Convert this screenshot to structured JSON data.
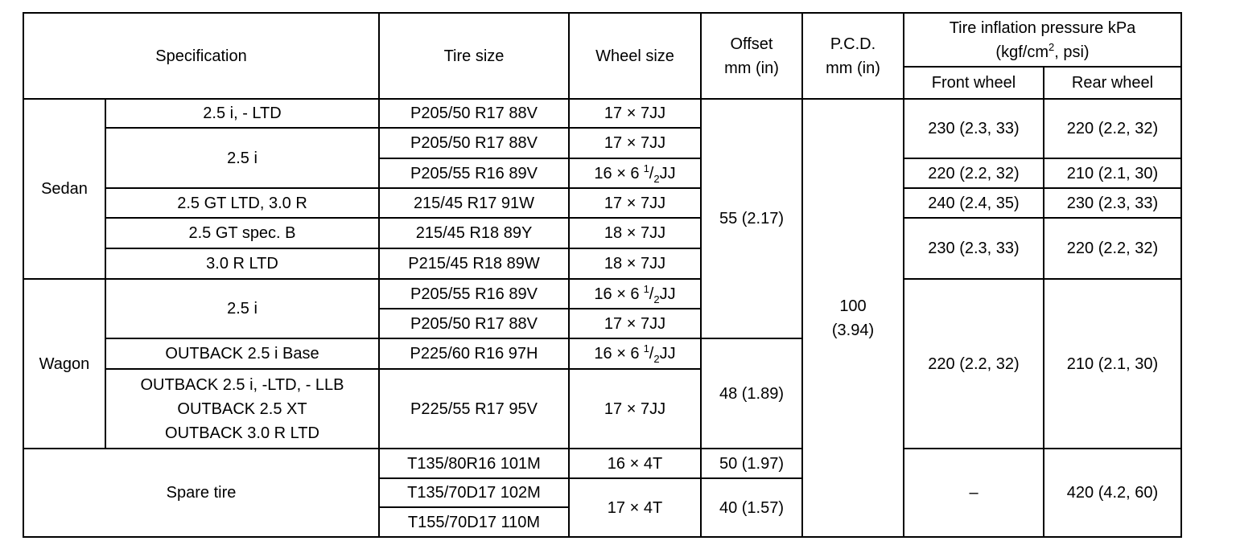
{
  "table": {
    "header": {
      "specification": "Specification",
      "tire_size": "Tire size",
      "wheel_size": "Wheel size",
      "offset": [
        "Offset",
        "mm (in)"
      ],
      "pcd": [
        "P.C.D.",
        "mm (in)"
      ],
      "pressure": {
        "title": "Tire inflation pressure kPa",
        "unit_prefix": "(kgf/cm",
        "unit_exponent": "2",
        "unit_suffix": ", psi)",
        "front": "Front wheel",
        "rear": "Rear wheel"
      }
    },
    "groups": [
      "Sedan",
      "Wagon",
      "Spare tire"
    ],
    "specs": [
      "2.5 i, - LTD",
      "2.5 i",
      "2.5 GT LTD, 3.0 R",
      "2.5 GT spec. B",
      "3.0 R LTD",
      "2.5 i",
      "OUTBACK 2.5 i Base",
      [
        "OUTBACK 2.5 i, -LTD, - LLB",
        "OUTBACK 2.5 XT",
        "OUTBACK 3.0 R LTD"
      ]
    ],
    "tire_sizes": [
      "P205/50 R17 88V",
      "P205/50 R17 88V",
      "P205/55 R16 89V",
      "215/45 R17 91W",
      "215/45 R18 89Y",
      "P215/45 R18 89W",
      "P205/55 R16 89V",
      "P205/50 R17 88V",
      "P225/60 R16 97H",
      "P225/55 R17 95V",
      "T135/80R16 101M",
      "T135/70D17 102M",
      "T155/70D17 110M"
    ],
    "wheel_sizes": [
      "17 × 7JJ",
      "17 × 7JJ",
      {
        "whole": "16 × 6",
        "numerator": "1",
        "denominator": "2",
        "unit": "JJ"
      },
      "17 × 7JJ",
      "18 × 7JJ",
      "18 × 7JJ",
      {
        "whole": "16 × 6",
        "numerator": "1",
        "denominator": "2",
        "unit": "JJ"
      },
      "17 × 7JJ",
      {
        "whole": "16 × 6",
        "numerator": "1",
        "denominator": "2",
        "unit": "JJ"
      },
      "17 × 7JJ",
      "16 × 4T",
      "17 × 4T"
    ],
    "offsets": [
      "55 (2.17)",
      "48 (1.89)",
      "50 (1.97)",
      "40 (1.57)"
    ],
    "pcd": [
      "100",
      "(3.94)"
    ],
    "front": [
      "230 (2.3, 33)",
      "220 (2.2, 32)",
      "240 (2.4, 35)",
      "230 (2.3, 33)",
      "220 (2.2, 32)",
      "–"
    ],
    "rear": [
      "220 (2.2, 32)",
      "210 (2.1, 30)",
      "230 (2.3, 33)",
      "220 (2.2, 32)",
      "210 (2.1, 30)",
      "420 (4.2, 60)"
    ]
  }
}
